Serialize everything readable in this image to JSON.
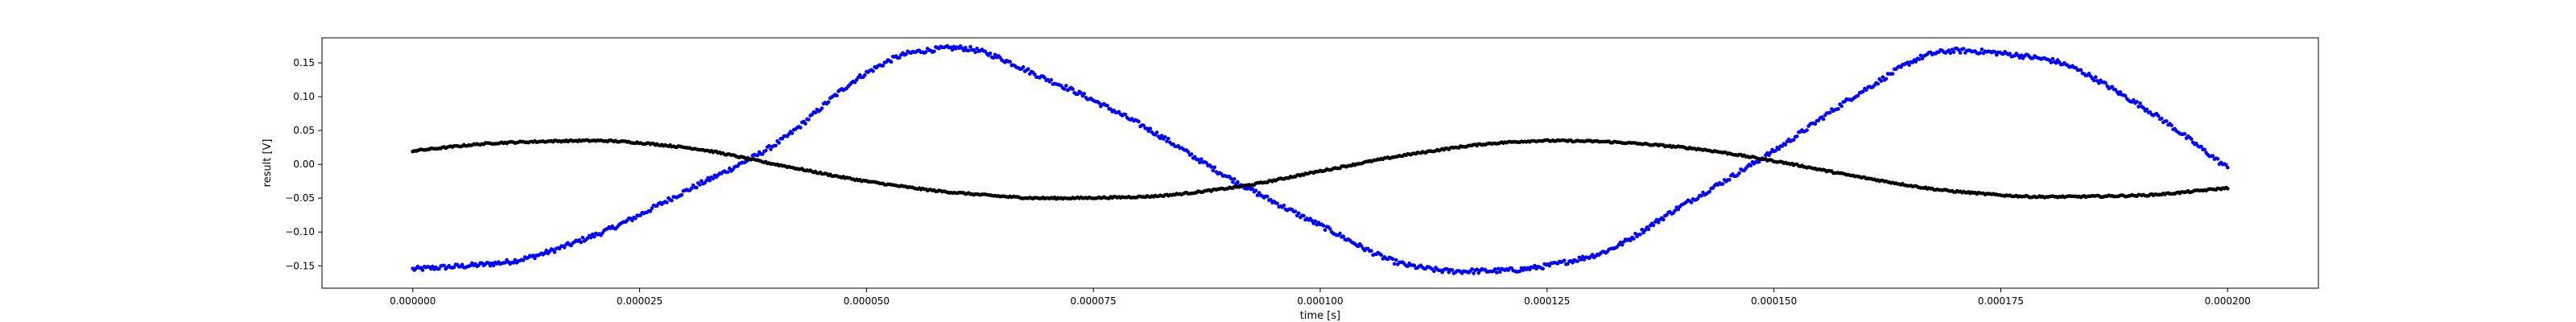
{
  "chart_data": {
    "type": "scatter",
    "title": "",
    "xlabel": "time [s]",
    "ylabel": "result [V]",
    "xlim": [
      -1e-05,
      0.00021
    ],
    "ylim": [
      -0.183,
      0.187
    ],
    "grid": false,
    "x_ticks": [
      0.0,
      2.5e-05,
      5e-05,
      7.5e-05,
      0.0001,
      0.000125,
      0.00015,
      0.000175,
      0.0002
    ],
    "x_tick_labels": [
      "0.000000",
      "0.000025",
      "0.000050",
      "0.000075",
      "0.000100",
      "0.000125",
      "0.000150",
      "0.000175",
      "0.000200"
    ],
    "y_ticks": [
      -0.15,
      -0.1,
      -0.05,
      0.0,
      0.05,
      0.1,
      0.15
    ],
    "y_tick_labels": [
      "−0.15",
      "−0.10",
      "−0.05",
      "0.00",
      "0.05",
      "0.10",
      "0.15"
    ],
    "series": [
      {
        "color": "#0000ff",
        "marker": "dot",
        "x": [
          0.0,
          1e-05,
          2e-05,
          3e-05,
          4e-05,
          5e-05,
          5.5e-05,
          6e-05,
          7e-05,
          8e-05,
          9e-05,
          0.0001,
          0.00011,
          0.000115,
          0.00012,
          0.00013,
          0.00014,
          0.00015,
          0.00016,
          0.000168,
          0.00017,
          0.00018,
          0.00019,
          0.0002
        ],
        "y": [
          -0.155,
          -0.145,
          -0.105,
          -0.04,
          0.03,
          0.135,
          0.165,
          0.172,
          0.125,
          0.06,
          -0.02,
          -0.09,
          -0.15,
          -0.158,
          -0.157,
          -0.135,
          -0.06,
          0.02,
          0.11,
          0.165,
          0.168,
          0.155,
          0.09,
          -0.005
        ]
      },
      {
        "color": "#000000",
        "marker": "dot",
        "x": [
          0.0,
          1e-05,
          2e-05,
          3e-05,
          4e-05,
          5e-05,
          6e-05,
          7e-05,
          8e-05,
          9e-05,
          0.0001,
          0.00011,
          0.00012,
          0.000125,
          0.00013,
          0.00014,
          0.00015,
          0.00016,
          0.00017,
          0.00018,
          0.00019,
          0.0002
        ],
        "y": [
          0.02,
          0.032,
          0.035,
          0.025,
          0.0,
          -0.025,
          -0.042,
          -0.05,
          -0.048,
          -0.035,
          -0.01,
          0.015,
          0.032,
          0.035,
          0.034,
          0.025,
          0.005,
          -0.02,
          -0.04,
          -0.048,
          -0.046,
          -0.035
        ]
      }
    ]
  }
}
